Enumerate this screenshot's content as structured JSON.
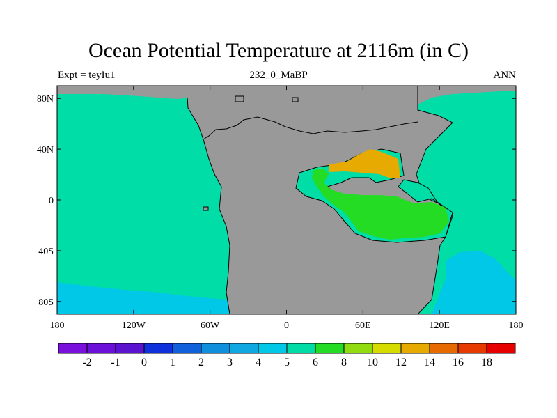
{
  "header": {
    "title": "Ocean Potential Temperature at 2116m (in C)",
    "left": "Expt = teyIu1",
    "center": "232_0_MaBP",
    "right": "ANN"
  },
  "map": {
    "x_ticks": [
      "180",
      "120W",
      "60W",
      "0",
      "60E",
      "120E",
      "180"
    ],
    "y_ticks": [
      "80N",
      "40N",
      "0",
      "40S",
      "80S"
    ],
    "lon_range": [
      -180,
      180
    ],
    "lat_range": [
      -90,
      90
    ],
    "land_color": "#999999",
    "regions": [
      {
        "name": "panthalassa-deep-water",
        "value_range": [
          5,
          6
        ],
        "color": "#00dda6"
      },
      {
        "name": "southern-high-latitude-water",
        "value_range": [
          4,
          5
        ],
        "color": "#00c8e6"
      },
      {
        "name": "tethys-warm-water",
        "value_range": [
          6,
          8
        ],
        "color": "#23dc23"
      },
      {
        "name": "northern-tethys-warm-water",
        "value_range": [
          12,
          14
        ],
        "color": "#e6aa00"
      }
    ]
  },
  "colorbar": {
    "colors": [
      "#7a10dc",
      "#6a10d8",
      "#5a14d0",
      "#1030dc",
      "#1060dc",
      "#1090dc",
      "#10a8e0",
      "#00c8e6",
      "#00dca6",
      "#23dc23",
      "#90dc10",
      "#d6dc00",
      "#e6aa00",
      "#e66a00",
      "#e63a00",
      "#e60000"
    ],
    "labels": [
      "-2",
      "-1",
      "0",
      "1",
      "2",
      "3",
      "4",
      "5",
      "6",
      "8",
      "10",
      "12",
      "14",
      "16",
      "18"
    ]
  }
}
